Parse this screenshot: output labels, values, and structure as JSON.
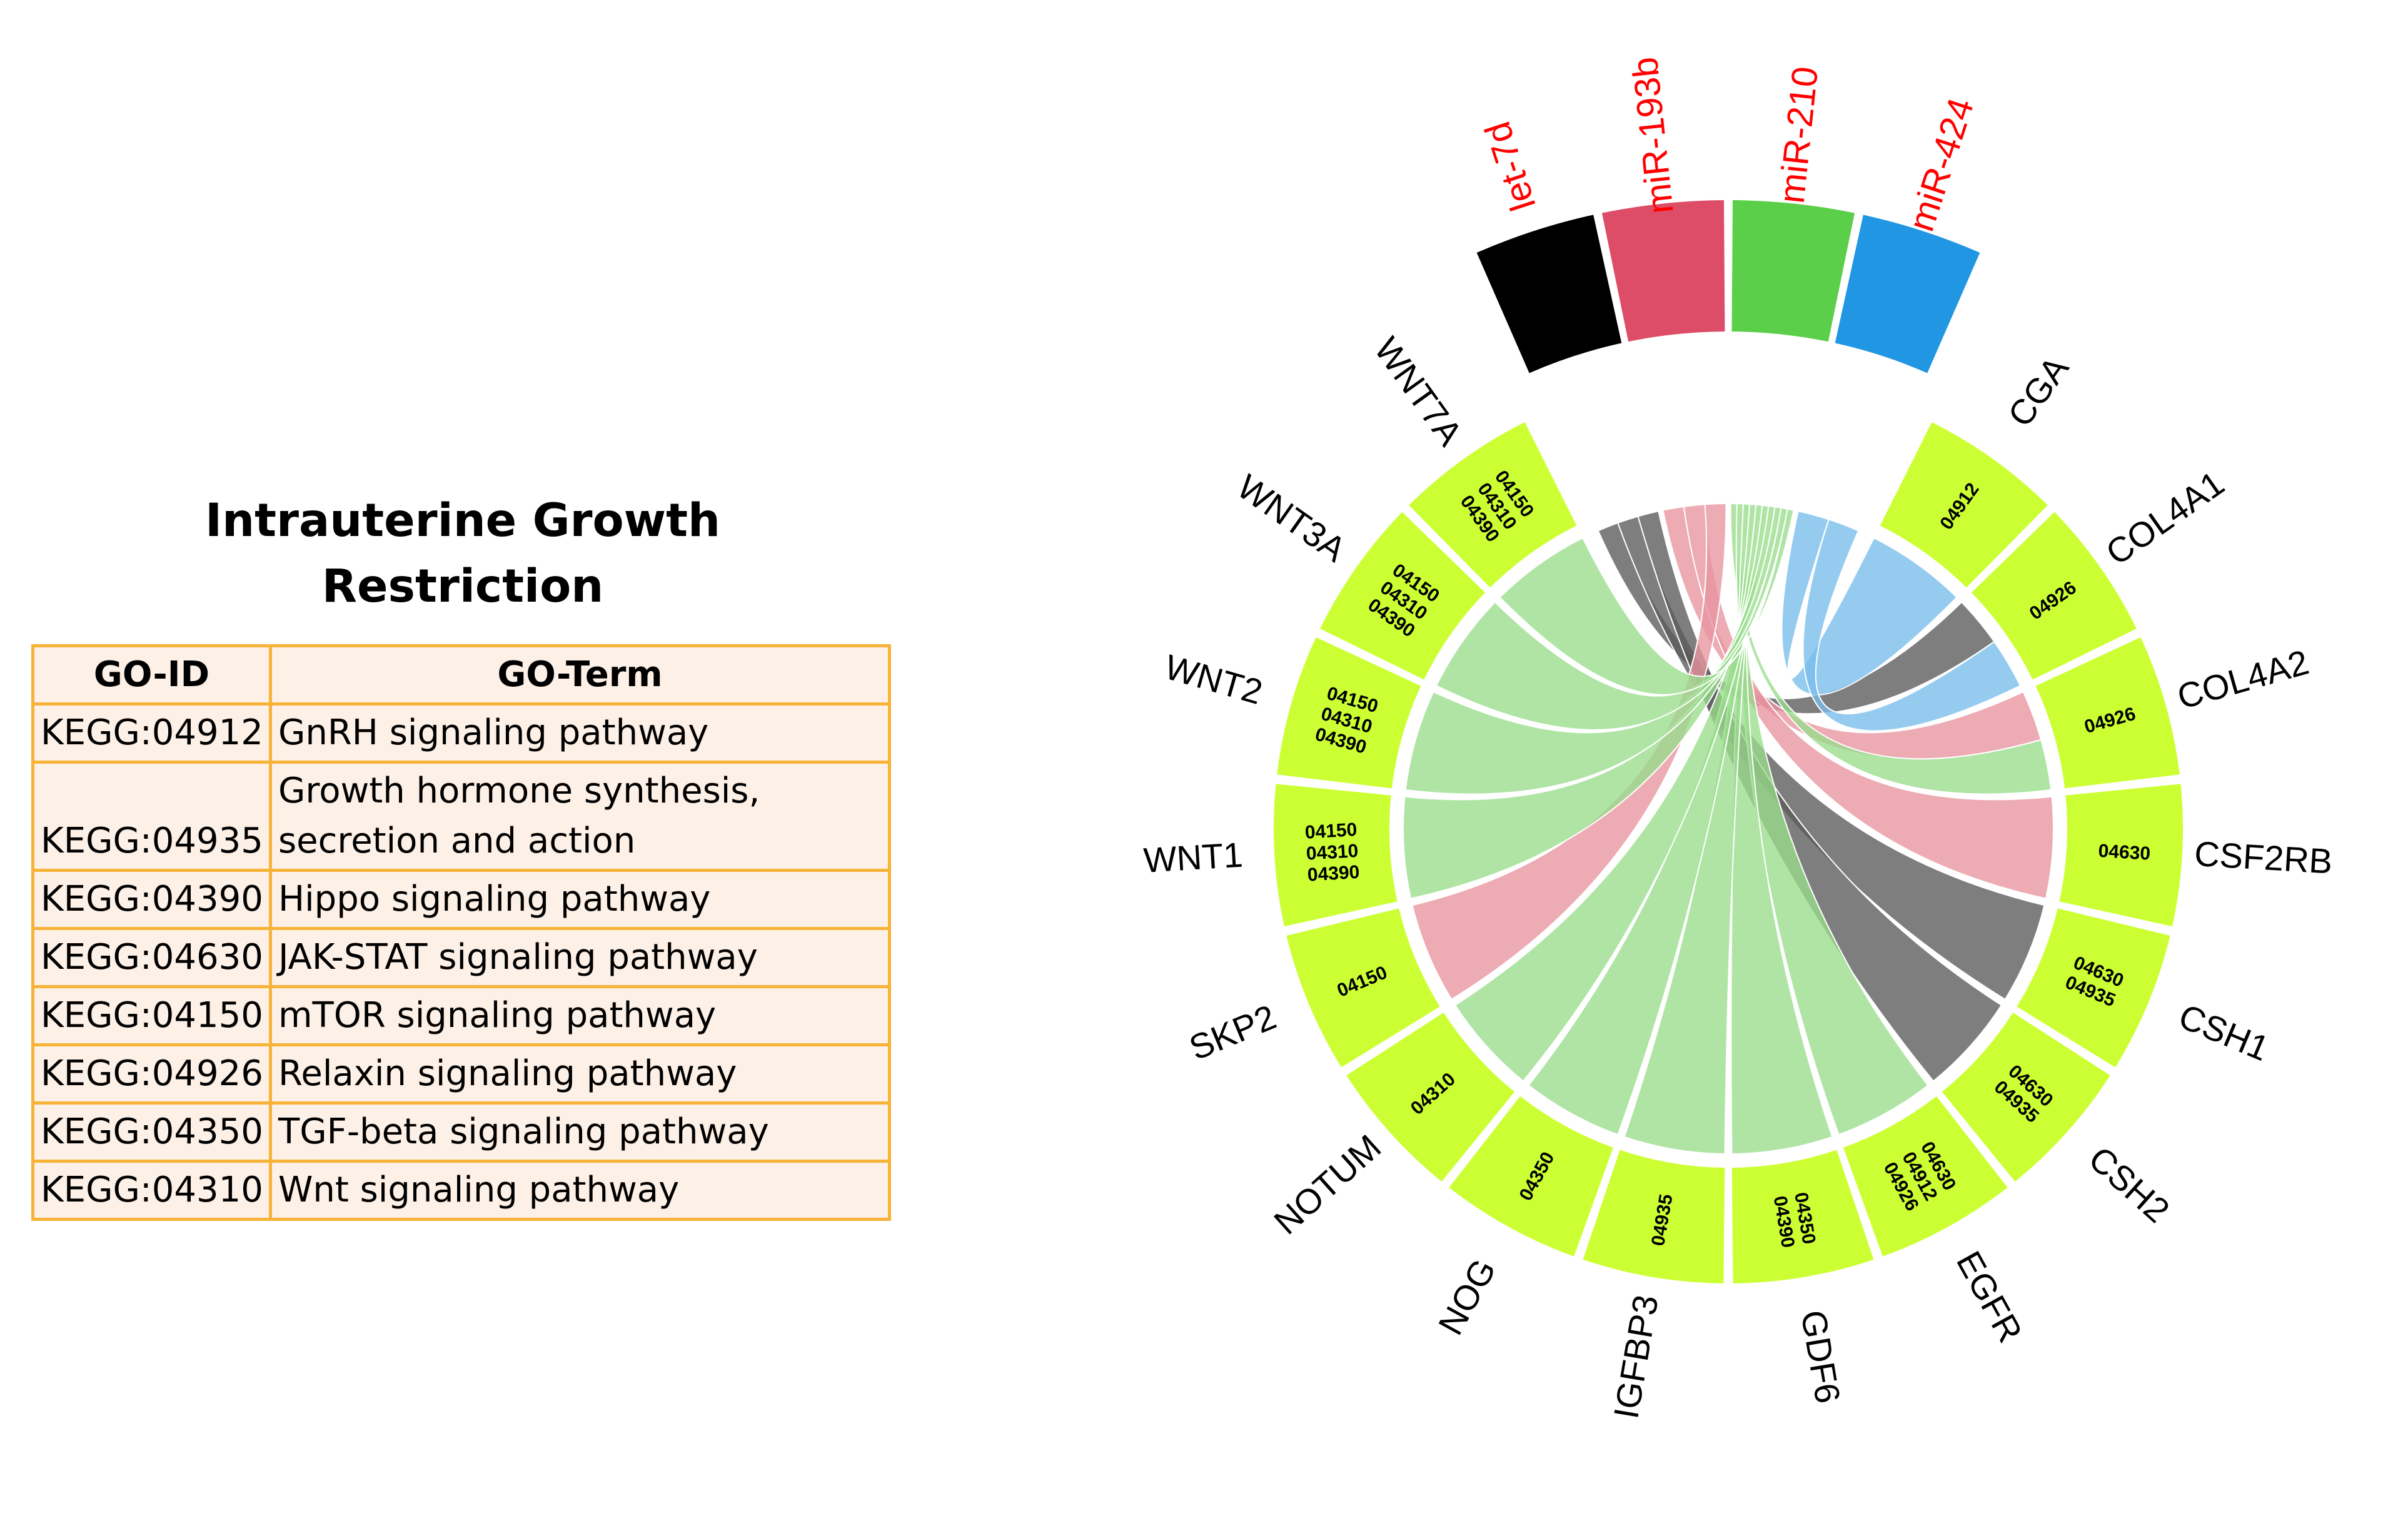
{
  "title_lines": [
    "Intrauterine Growth",
    "Restriction"
  ],
  "table": {
    "headers": [
      "GO-ID",
      "GO-Term"
    ],
    "rows": [
      {
        "id": "KEGG:04912",
        "term": "GnRH signaling pathway"
      },
      {
        "id": "KEGG:04935",
        "term": "Growth hormone synthesis, secretion and action"
      },
      {
        "id": "KEGG:04390",
        "term": "Hippo signaling pathway"
      },
      {
        "id": "KEGG:04630",
        "term": "JAK-STAT signaling pathway"
      },
      {
        "id": "KEGG:04150",
        "term": "mTOR signaling pathway"
      },
      {
        "id": "KEGG:04926",
        "term": "Relaxin signaling pathway"
      },
      {
        "id": "KEGG:04350",
        "term": "TGF-beta signaling pathway"
      },
      {
        "id": "KEGG:04310",
        "term": "Wnt signaling pathway"
      }
    ]
  },
  "colors": {
    "table_border": "#f6b338",
    "table_fill": "#fdf0e6",
    "gene_segment": "#ccff33",
    "mirna_label": "#ff0000"
  },
  "mirnas": [
    {
      "name": "let-7d",
      "color": "#000000",
      "ribbon": "#5a5a5a"
    },
    {
      "name": "miR-193b",
      "color": "#dd4d68",
      "ribbon": "#e8939f"
    },
    {
      "name": "miR-210",
      "color": "#5ccf4a",
      "ribbon": "#98dc8c"
    },
    {
      "name": "miR-424",
      "color": "#2196e3",
      "ribbon": "#78bdec"
    }
  ],
  "genes": [
    {
      "name": "CGA",
      "codes": [
        "04912"
      ]
    },
    {
      "name": "COL4A1",
      "codes": [
        "04926"
      ]
    },
    {
      "name": "COL4A2",
      "codes": [
        "04926"
      ]
    },
    {
      "name": "CSF2RB",
      "codes": [
        "04630"
      ]
    },
    {
      "name": "CSH1",
      "codes": [
        "04630",
        "04935"
      ]
    },
    {
      "name": "CSH2",
      "codes": [
        "04630",
        "04935"
      ]
    },
    {
      "name": "EGFR",
      "codes": [
        "04630",
        "04912",
        "04926"
      ]
    },
    {
      "name": "GDF6",
      "codes": [
        "04350",
        "04390"
      ]
    },
    {
      "name": "IGFBP3",
      "codes": [
        "04935"
      ]
    },
    {
      "name": "NOG",
      "codes": [
        "04350"
      ]
    },
    {
      "name": "NOTUM",
      "codes": [
        "04310"
      ]
    },
    {
      "name": "SKP2",
      "codes": [
        "04150"
      ]
    },
    {
      "name": "WNT1",
      "codes": [
        "04150",
        "04310",
        "04390"
      ]
    },
    {
      "name": "WNT2",
      "codes": [
        "04150",
        "04310",
        "04390"
      ]
    },
    {
      "name": "WNT3A",
      "codes": [
        "04150",
        "04310",
        "04390"
      ]
    },
    {
      "name": "WNT7A",
      "codes": [
        "04150",
        "04310",
        "04390"
      ]
    }
  ],
  "links": [
    {
      "mirna": "let-7d",
      "gene": "COL4A1"
    },
    {
      "mirna": "let-7d",
      "gene": "CSH1"
    },
    {
      "mirna": "let-7d",
      "gene": "CSH2"
    },
    {
      "mirna": "miR-193b",
      "gene": "COL4A2"
    },
    {
      "mirna": "miR-193b",
      "gene": "CSF2RB"
    },
    {
      "mirna": "miR-193b",
      "gene": "SKP2"
    },
    {
      "mirna": "miR-210",
      "gene": "COL4A2"
    },
    {
      "mirna": "miR-210",
      "gene": "EGFR"
    },
    {
      "mirna": "miR-210",
      "gene": "GDF6"
    },
    {
      "mirna": "miR-210",
      "gene": "IGFBP3"
    },
    {
      "mirna": "miR-210",
      "gene": "NOG"
    },
    {
      "mirna": "miR-210",
      "gene": "NOTUM"
    },
    {
      "mirna": "miR-210",
      "gene": "WNT1"
    },
    {
      "mirna": "miR-210",
      "gene": "WNT2"
    },
    {
      "mirna": "miR-210",
      "gene": "WNT3A"
    },
    {
      "mirna": "miR-210",
      "gene": "WNT7A"
    },
    {
      "mirna": "miR-424",
      "gene": "CGA"
    },
    {
      "mirna": "miR-424",
      "gene": "COL4A1"
    }
  ]
}
